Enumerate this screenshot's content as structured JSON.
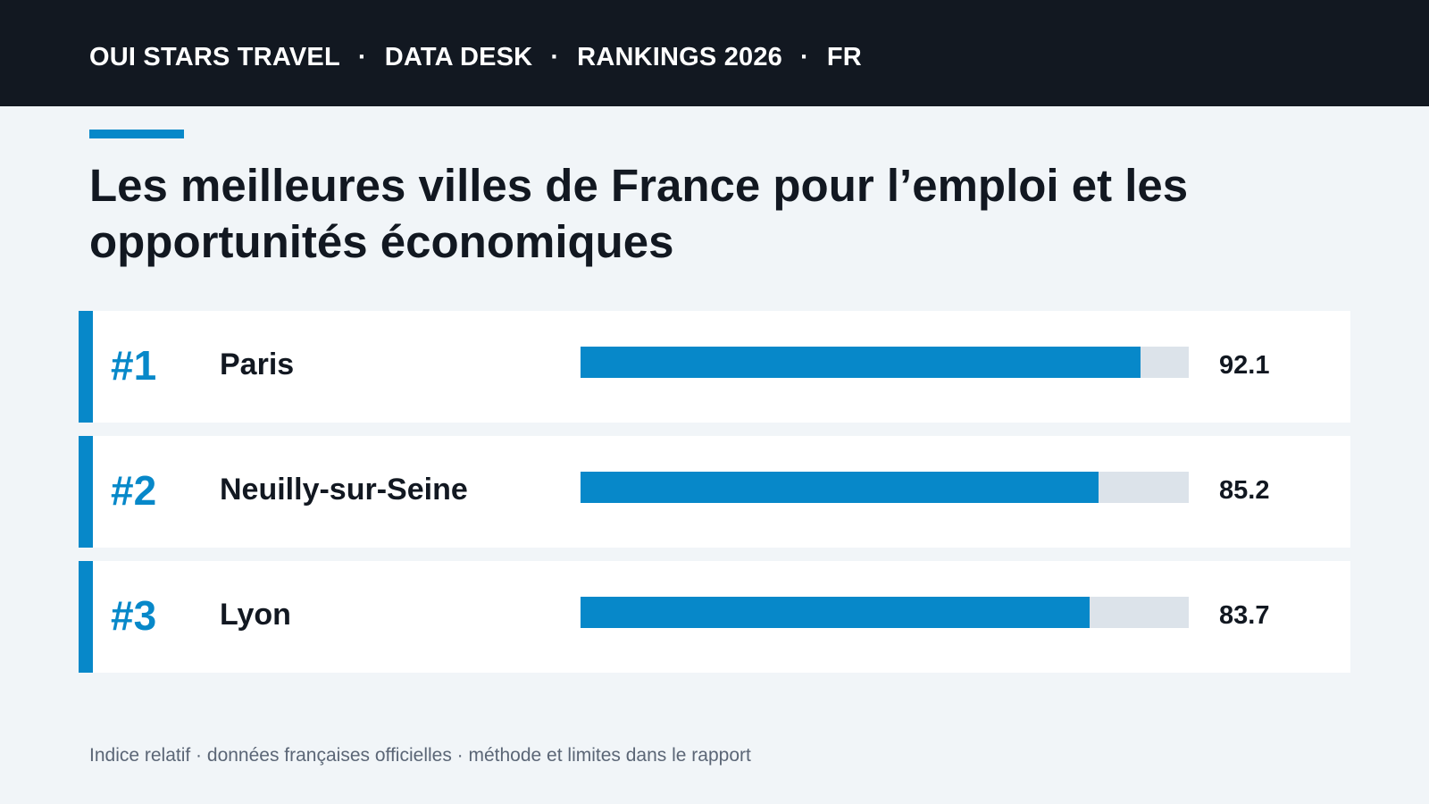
{
  "header": {
    "items": [
      "OUI STARS TRAVEL",
      "DATA DESK",
      "RANKINGS 2026",
      "FR"
    ],
    "separator": "·"
  },
  "colors": {
    "accent": "#0788c9",
    "dark": "#121821",
    "background": "#f1f5f8",
    "track": "#dce3ea"
  },
  "footer": {
    "note": "Indice relatif · données françaises officielles · méthode et limites dans le rapport"
  },
  "chart_data": {
    "type": "bar",
    "orientation": "horizontal",
    "title": "Les meilleures villes de France pour l’emploi et les opportunités économiques",
    "xlim": [
      0,
      100
    ],
    "grid": false,
    "legend": "none",
    "categories": [
      "Paris",
      "Neuilly-sur-Seine",
      "Lyon"
    ],
    "ranks": [
      "#1",
      "#2",
      "#3"
    ],
    "values": [
      92.1,
      85.2,
      83.7
    ],
    "value_labels": [
      "92.1",
      "85.2",
      "83.7"
    ]
  }
}
